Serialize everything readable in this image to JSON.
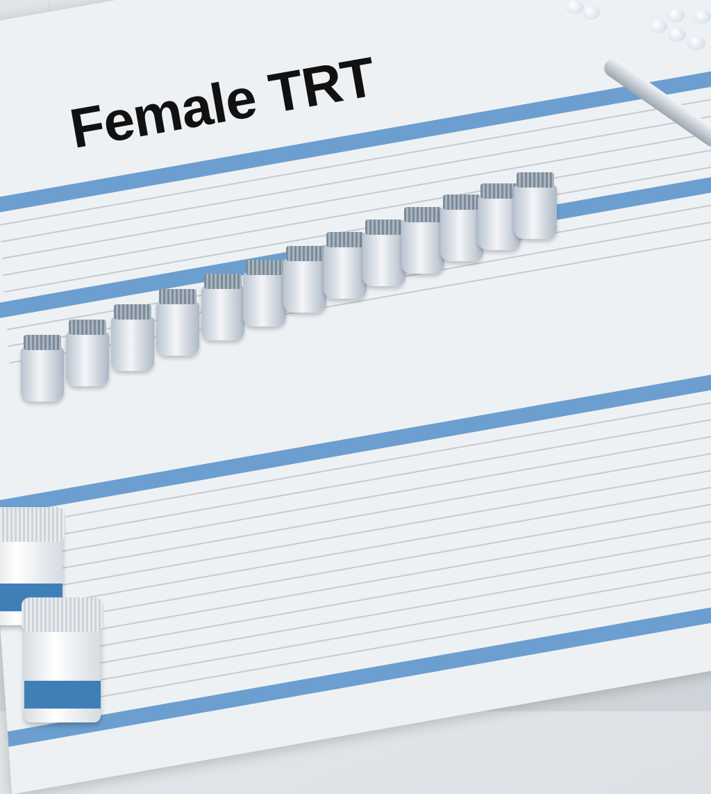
{
  "document": {
    "title": "Female TRT"
  },
  "colors": {
    "accent_band": "#6c9fcf",
    "bottle_label": "#3f7fb8"
  }
}
